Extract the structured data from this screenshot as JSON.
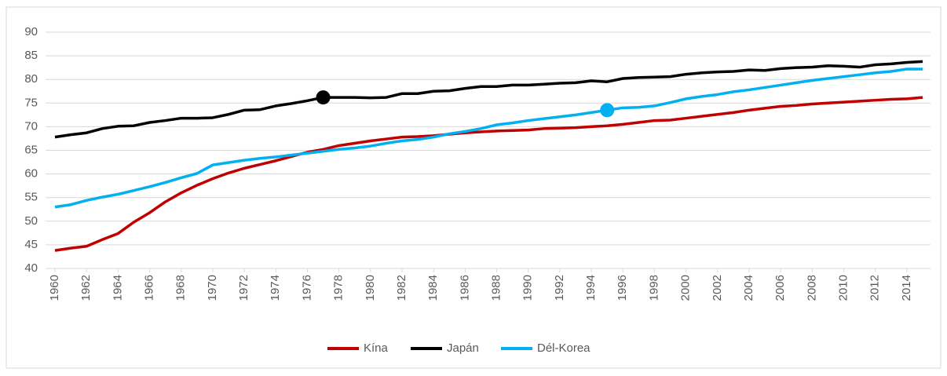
{
  "chart_data": {
    "type": "line",
    "x": [
      1960,
      1961,
      1962,
      1963,
      1964,
      1965,
      1966,
      1967,
      1968,
      1969,
      1970,
      1971,
      1972,
      1973,
      1974,
      1975,
      1976,
      1977,
      1978,
      1979,
      1980,
      1981,
      1982,
      1983,
      1984,
      1985,
      1986,
      1987,
      1988,
      1989,
      1990,
      1991,
      1992,
      1993,
      1994,
      1995,
      1996,
      1997,
      1998,
      1999,
      2000,
      2001,
      2002,
      2003,
      2004,
      2005,
      2006,
      2007,
      2008,
      2009,
      2010,
      2011,
      2012,
      2013,
      2014,
      2015
    ],
    "xlim": [
      1960,
      2015
    ],
    "xticks": [
      1960,
      1962,
      1964,
      1966,
      1968,
      1970,
      1972,
      1974,
      1976,
      1978,
      1980,
      1982,
      1984,
      1986,
      1988,
      1990,
      1992,
      1994,
      1996,
      1998,
      2000,
      2002,
      2004,
      2006,
      2008,
      2010,
      2012,
      2014
    ],
    "ylim": [
      40,
      90
    ],
    "yticks": [
      40,
      45,
      50,
      55,
      60,
      65,
      70,
      75,
      80,
      85,
      90
    ],
    "grid": true,
    "legend": "bottom",
    "series": [
      {
        "name": "Kína",
        "color": "#c00000",
        "values": [
          43.8,
          44.3,
          44.7,
          46.1,
          47.4,
          49.8,
          51.8,
          54.1,
          56.0,
          57.6,
          59.0,
          60.2,
          61.2,
          62.0,
          62.8,
          63.7,
          64.6,
          65.2,
          66.0,
          66.5,
          67.0,
          67.4,
          67.8,
          67.9,
          68.1,
          68.4,
          68.7,
          68.9,
          69.1,
          69.2,
          69.3,
          69.6,
          69.7,
          69.8,
          70.0,
          70.2,
          70.5,
          70.9,
          71.3,
          71.4,
          71.8,
          72.2,
          72.6,
          73.0,
          73.5,
          73.9,
          74.3,
          74.5,
          74.8,
          75.0,
          75.2,
          75.4,
          75.6,
          75.8,
          75.9,
          76.2
        ]
      },
      {
        "name": "Japán",
        "color": "#000000",
        "highlight": 1977,
        "values": [
          67.8,
          68.3,
          68.7,
          69.6,
          70.1,
          70.2,
          70.9,
          71.3,
          71.8,
          71.8,
          71.9,
          72.6,
          73.5,
          73.6,
          74.4,
          74.9,
          75.5,
          76.2,
          76.2,
          76.2,
          76.1,
          76.2,
          77.0,
          77.0,
          77.5,
          77.6,
          78.1,
          78.5,
          78.5,
          78.8,
          78.8,
          79.0,
          79.2,
          79.3,
          79.7,
          79.5,
          80.2,
          80.4,
          80.5,
          80.6,
          81.1,
          81.4,
          81.6,
          81.7,
          82.0,
          81.9,
          82.3,
          82.5,
          82.6,
          82.9,
          82.8,
          82.6,
          83.1,
          83.3,
          83.6,
          83.8
        ]
      },
      {
        "name": "Dél-Korea",
        "color": "#00b0f0",
        "highlight": 1995,
        "values": [
          53.0,
          53.5,
          54.4,
          55.1,
          55.7,
          56.5,
          57.3,
          58.2,
          59.2,
          60.1,
          61.9,
          62.4,
          62.9,
          63.3,
          63.6,
          64.0,
          64.4,
          64.8,
          65.2,
          65.5,
          65.9,
          66.5,
          67.0,
          67.3,
          67.8,
          68.5,
          69.0,
          69.6,
          70.4,
          70.8,
          71.3,
          71.7,
          72.1,
          72.5,
          73.0,
          73.5,
          74.0,
          74.1,
          74.4,
          75.1,
          75.9,
          76.4,
          76.8,
          77.4,
          77.8,
          78.3,
          78.8,
          79.3,
          79.8,
          80.2,
          80.6,
          81.0,
          81.4,
          81.7,
          82.2,
          82.2
        ]
      }
    ]
  }
}
